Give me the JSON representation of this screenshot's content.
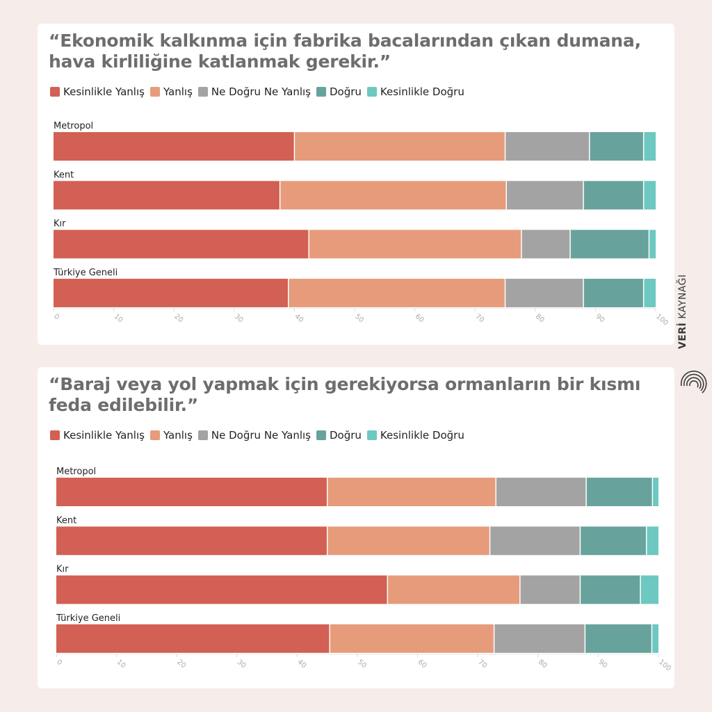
{
  "brand": {
    "strong": "VERİ",
    "rest": "KAYNAĞI"
  },
  "colors": {
    "Kesinlikle Yanlış": "#d26054",
    "Yanlış": "#e69c7b",
    "Ne Doğru Ne Yanlış": "#a3a3a3",
    "Doğru": "#67a39c",
    "Kesinlikle Doğru": "#6cc8c0"
  },
  "chart_data": [
    {
      "type": "bar",
      "orientation": "horizontal",
      "stacked": true,
      "title": "“Ekonomik kalkınma için fabrika bacalarından çıkan dumana, hava kirliliğine katlanmak gerekir.”",
      "legend_placement": "top-left",
      "categories": [
        "Metropol",
        "Kent",
        "Kır",
        "Türkiye Geneli"
      ],
      "series": [
        {
          "name": "Kesinlikle Yanlış",
          "values": [
            40,
            37.6,
            42.4,
            39
          ]
        },
        {
          "name": "Yanlış",
          "values": [
            35,
            37.6,
            35.3,
            36
          ]
        },
        {
          "name": "Ne Doğru Ne Yanlış",
          "values": [
            14,
            12.8,
            8.1,
            13
          ]
        },
        {
          "name": "Doğru",
          "values": [
            9,
            10,
            13.1,
            10
          ]
        },
        {
          "name": "Kesinlikle Doğru",
          "values": [
            2,
            2,
            1.1,
            2
          ]
        }
      ],
      "xlim": [
        0,
        100
      ],
      "xticks": [
        "0",
        "10",
        "20",
        "30",
        "40",
        "50",
        "60",
        "70",
        "80",
        "90",
        "100"
      ],
      "grid": false
    },
    {
      "type": "bar",
      "orientation": "horizontal",
      "stacked": true,
      "title": "“Baraj veya yol yapmak için gerekiyorsa ormanların bir kısmı feda edilebilir.”",
      "legend_placement": "top-left",
      "categories": [
        "Metropol",
        "Kent",
        "Kır",
        "Türkiye Geneli"
      ],
      "series": [
        {
          "name": "Kesinlikle Yanlış",
          "values": [
            45,
            45,
            55,
            45.4
          ]
        },
        {
          "name": "Yanlış",
          "values": [
            28,
            27,
            22,
            27.3
          ]
        },
        {
          "name": "Ne Doğru Ne Yanlış",
          "values": [
            15,
            15,
            10,
            15.1
          ]
        },
        {
          "name": "Doğru",
          "values": [
            11,
            11,
            10,
            11.1
          ]
        },
        {
          "name": "Kesinlikle Doğru",
          "values": [
            1,
            2,
            3,
            1.1
          ]
        }
      ],
      "xlim": [
        0,
        100
      ],
      "xticks": [
        "0",
        "10",
        "20",
        "30",
        "40",
        "50",
        "60",
        "70",
        "80",
        "90",
        "100"
      ],
      "grid": false
    }
  ]
}
